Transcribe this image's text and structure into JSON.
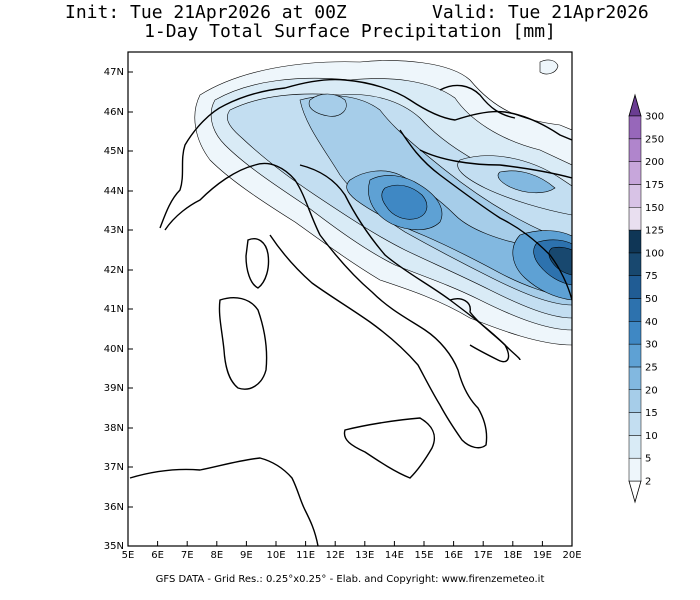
{
  "header": {
    "init": "Init: Tue 21Apr2026 at 00Z",
    "valid": "Valid: Tue 21Apr2026",
    "subtitle": "1-Day Total Surface Precipitation [mm]"
  },
  "map": {
    "lon_labels": [
      "5E",
      "6E",
      "7E",
      "8E",
      "9E",
      "10E",
      "11E",
      "12E",
      "13E",
      "14E",
      "15E",
      "16E",
      "17E",
      "18E",
      "19E",
      "20E"
    ],
    "lat_labels": [
      "35N",
      "36N",
      "37N",
      "38N",
      "39N",
      "40N",
      "41N",
      "42N",
      "43N",
      "44N",
      "45N",
      "46N",
      "47N"
    ]
  },
  "colorbar": {
    "levels": [
      "2",
      "5",
      "10",
      "15",
      "20",
      "25",
      "30",
      "40",
      "50",
      "75",
      "100",
      "125",
      "150",
      "175",
      "200",
      "250",
      "300"
    ],
    "colors": [
      "#eef6fb",
      "#d9ebf6",
      "#c3def1",
      "#a6cde9",
      "#82b8e0",
      "#5ea1d4",
      "#3f88c4",
      "#2d72ae",
      "#205c94",
      "#18486f",
      "#0f3656",
      "#e9dff0",
      "#d8c3e6",
      "#c7a6db",
      "#b085cc",
      "#9767ba",
      "#7a4a9f"
    ]
  },
  "footer": "GFS DATA - Grid Res.: 0.25°x0.25° - Elab. and Copyright: www.firenzemeteo.it"
}
